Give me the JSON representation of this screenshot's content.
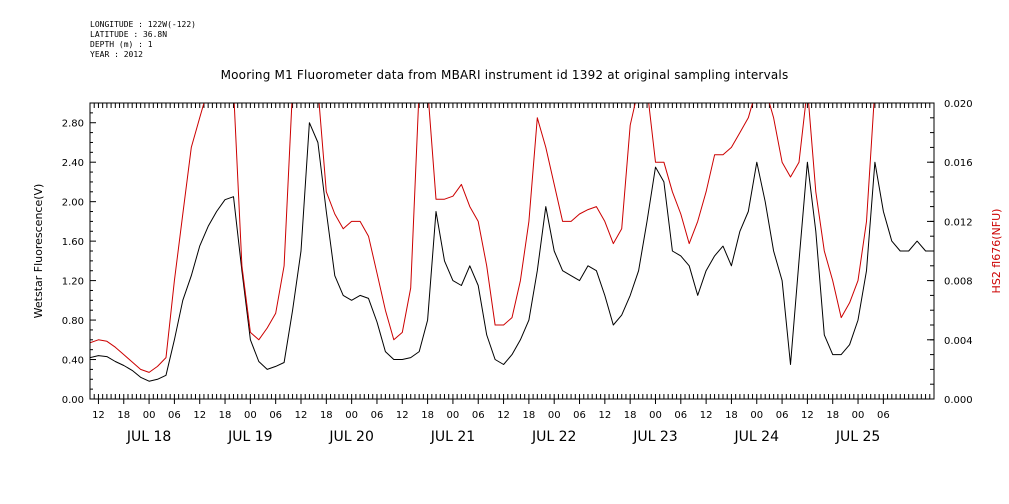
{
  "meta": {
    "longitude": "LONGITUDE : 122W(-122)",
    "latitude": "LATITUDE : 36.8N",
    "depth": "DEPTH (m) : 1",
    "year": "YEAR : 2012"
  },
  "chart_data": {
    "type": "line",
    "title": "Mooring M1 Fluorometer data from MBARI instrument id 1392 at original sampling intervals",
    "ylabel_left": "Wetstar Fluorescence(V)",
    "ylabel_right": "HS2 fl676(NFU)",
    "colors": {
      "left": "#000000",
      "right": "#cc0000",
      "axis": "#000000"
    },
    "x_range_hours": [
      -14,
      186
    ],
    "x_start_label": "JUL 18 00:00 (hour 0)",
    "y_left": {
      "min": 0.0,
      "max": 3.0,
      "ticks": [
        "0.00",
        "0.40",
        "0.80",
        "1.20",
        "1.60",
        "2.00",
        "2.40",
        "2.80"
      ]
    },
    "y_right": {
      "min": 0.0,
      "max": 0.02,
      "ticks": [
        "0.000",
        "0.004",
        "0.008",
        "0.012",
        "0.016",
        "0.020"
      ]
    },
    "hour_tick_labels": [
      "12",
      "18",
      "00",
      "06",
      "12",
      "18",
      "00",
      "06",
      "12",
      "18",
      "00",
      "06",
      "12",
      "18",
      "00",
      "06",
      "12",
      "18",
      "00",
      "06",
      "12",
      "18",
      "00",
      "06",
      "12",
      "18",
      "00",
      "06",
      "12",
      "18",
      "00",
      "06"
    ],
    "date_labels": [
      "JUL 18",
      "JUL 19",
      "JUL 20",
      "JUL 21",
      "JUL 22",
      "JUL 23",
      "JUL 24",
      "JUL 25"
    ],
    "series": [
      {
        "name": "Wetstar Fluorescence(V)",
        "axis": "left",
        "x": [
          -14,
          -12,
          -10,
          -8,
          -6,
          -4,
          -2,
          0,
          2,
          4,
          6,
          8,
          10,
          12,
          14,
          16,
          18,
          20,
          22,
          24,
          26,
          28,
          30,
          32,
          34,
          36,
          38,
          40,
          42,
          44,
          46,
          48,
          50,
          52,
          54,
          56,
          58,
          60,
          62,
          64,
          66,
          68,
          70,
          72,
          74,
          76,
          78,
          80,
          82,
          84,
          86,
          88,
          90,
          92,
          94,
          96,
          98,
          100,
          102,
          104,
          106,
          108,
          110,
          112,
          114,
          116,
          118,
          120,
          122,
          124,
          126,
          128,
          130,
          132,
          134,
          136,
          138,
          140,
          142,
          144,
          146,
          148,
          150,
          152,
          154,
          156,
          158,
          160,
          162,
          164,
          166,
          168,
          170,
          172,
          174,
          176,
          178,
          180,
          182,
          184,
          186
        ],
        "values": [
          0.42,
          0.44,
          0.43,
          0.38,
          0.34,
          0.29,
          0.22,
          0.18,
          0.2,
          0.24,
          0.6,
          1.0,
          1.25,
          1.55,
          1.75,
          1.9,
          2.02,
          2.05,
          1.3,
          0.6,
          0.38,
          0.3,
          0.33,
          0.37,
          0.9,
          1.5,
          2.8,
          2.6,
          1.9,
          1.25,
          1.05,
          1.0,
          1.05,
          1.02,
          0.78,
          0.48,
          0.4,
          0.4,
          0.42,
          0.48,
          0.8,
          1.9,
          1.4,
          1.2,
          1.15,
          1.35,
          1.15,
          0.65,
          0.4,
          0.35,
          0.45,
          0.6,
          0.8,
          1.3,
          1.95,
          1.5,
          1.3,
          1.25,
          1.2,
          1.35,
          1.3,
          1.05,
          0.75,
          0.85,
          1.05,
          1.3,
          1.8,
          2.35,
          2.2,
          1.5,
          1.45,
          1.35,
          1.05,
          1.3,
          1.45,
          1.55,
          1.35,
          1.7,
          1.9,
          2.4,
          2.0,
          1.5,
          1.2,
          0.35,
          1.4,
          2.4,
          1.7,
          0.65,
          0.45,
          0.45,
          0.55,
          0.8,
          1.3,
          2.4,
          1.9,
          1.6,
          1.5,
          1.5,
          1.6,
          1.5,
          1.5
        ]
      },
      {
        "name": "HS2 fl676(NFU)",
        "axis": "right",
        "x": [
          -14,
          -12,
          -10,
          -8,
          -6,
          -4,
          -2,
          0,
          2,
          4,
          6,
          8,
          10,
          12,
          14,
          16,
          18,
          20,
          22,
          24,
          26,
          28,
          30,
          32,
          34,
          36,
          38,
          40,
          42,
          44,
          46,
          48,
          50,
          52,
          54,
          56,
          58,
          60,
          62,
          64,
          66,
          68,
          70,
          72,
          74,
          76,
          78,
          80,
          82,
          84,
          86,
          88,
          90,
          92,
          94,
          96,
          98,
          100,
          102,
          104,
          106,
          108,
          110,
          112,
          114,
          116,
          118,
          120,
          122,
          124,
          126,
          128,
          130,
          132,
          134,
          136,
          138,
          140,
          142,
          144,
          146,
          148,
          150,
          152,
          154,
          156,
          158,
          160,
          162,
          164,
          166,
          168,
          170,
          172,
          174,
          176,
          178,
          180,
          182,
          184,
          186
        ],
        "values": [
          0.0038,
          0.004,
          0.0039,
          0.0035,
          0.003,
          0.0025,
          0.002,
          0.0018,
          0.0022,
          0.0028,
          0.008,
          0.0125,
          0.017,
          0.019,
          0.021,
          0.021,
          0.021,
          0.021,
          0.009,
          0.0045,
          0.004,
          0.0048,
          0.0058,
          0.009,
          0.021,
          0.021,
          0.021,
          0.021,
          0.014,
          0.0125,
          0.0115,
          0.012,
          0.012,
          0.011,
          0.0085,
          0.006,
          0.004,
          0.0045,
          0.0075,
          0.021,
          0.021,
          0.0135,
          0.0135,
          0.0137,
          0.0145,
          0.013,
          0.012,
          0.009,
          0.005,
          0.005,
          0.0055,
          0.008,
          0.012,
          0.019,
          0.017,
          0.0145,
          0.012,
          0.012,
          0.0125,
          0.0128,
          0.013,
          0.012,
          0.0105,
          0.0115,
          0.0185,
          0.021,
          0.021,
          0.016,
          0.016,
          0.014,
          0.0125,
          0.0105,
          0.012,
          0.014,
          0.0165,
          0.0165,
          0.017,
          0.018,
          0.019,
          0.021,
          0.021,
          0.019,
          0.016,
          0.015,
          0.016,
          0.021,
          0.014,
          0.01,
          0.008,
          0.0055,
          0.0065,
          0.008,
          0.012,
          0.021,
          0.021,
          0.021,
          0.021,
          0.021,
          0.021,
          0.021,
          0.021
        ]
      }
    ]
  }
}
